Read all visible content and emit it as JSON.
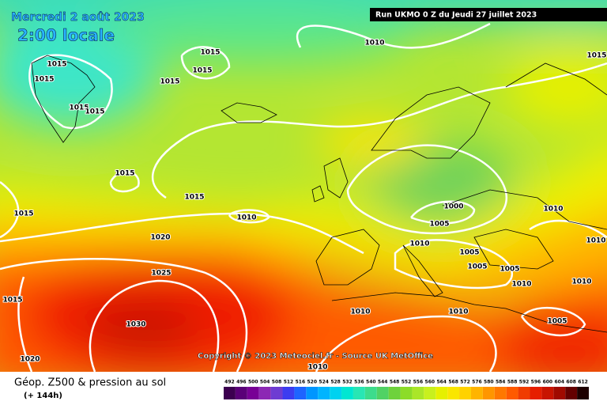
{
  "header": {
    "date": "Mercredi 2 août 2023",
    "time": "2:00 locale",
    "run": "Run UKMO 0 Z du Jeudi 27 juillet 2023"
  },
  "footer": {
    "copyright": "Copyright © 2023 Meteociel.fr - Source UK MetOffice"
  },
  "isobar_labels": [
    "1015",
    "1015",
    "1015",
    "1015",
    "1015",
    "1015",
    "1015",
    "1015",
    "1015",
    "1015",
    "1010",
    "1020",
    "1025",
    "1030",
    "1015",
    "1020",
    "1010",
    "1015",
    "1000",
    "1005",
    "1010",
    "1005",
    "1005",
    "1005",
    "1010",
    "1010",
    "1010",
    "1010",
    "1010",
    "1010",
    "1005",
    "1010"
  ],
  "legend": {
    "title": "Géop. Z500 & pression au sol",
    "subtitle": "(+ 144h)",
    "values": [
      492,
      496,
      500,
      504,
      508,
      512,
      516,
      520,
      524,
      528,
      532,
      536,
      540,
      544,
      548,
      552,
      556,
      560,
      564,
      568,
      572,
      576,
      580,
      584,
      588,
      592,
      596,
      600,
      604,
      608,
      612
    ],
    "colors": [
      "#3c0050",
      "#5a0078",
      "#780096",
      "#8c28b4",
      "#6e3cd2",
      "#3c3cf0",
      "#1e64ff",
      "#0096ff",
      "#00b4ff",
      "#00d2f0",
      "#00e6d2",
      "#28e6b4",
      "#3cdc8c",
      "#50d264",
      "#6ed23c",
      "#8cdc28",
      "#aae628",
      "#c8f01e",
      "#e6f000",
      "#fae600",
      "#ffd200",
      "#ffb400",
      "#ff9600",
      "#ff7800",
      "#ff5a00",
      "#f03c00",
      "#e61e00",
      "#c81400",
      "#a00a00",
      "#640000",
      "#1e0000"
    ]
  }
}
